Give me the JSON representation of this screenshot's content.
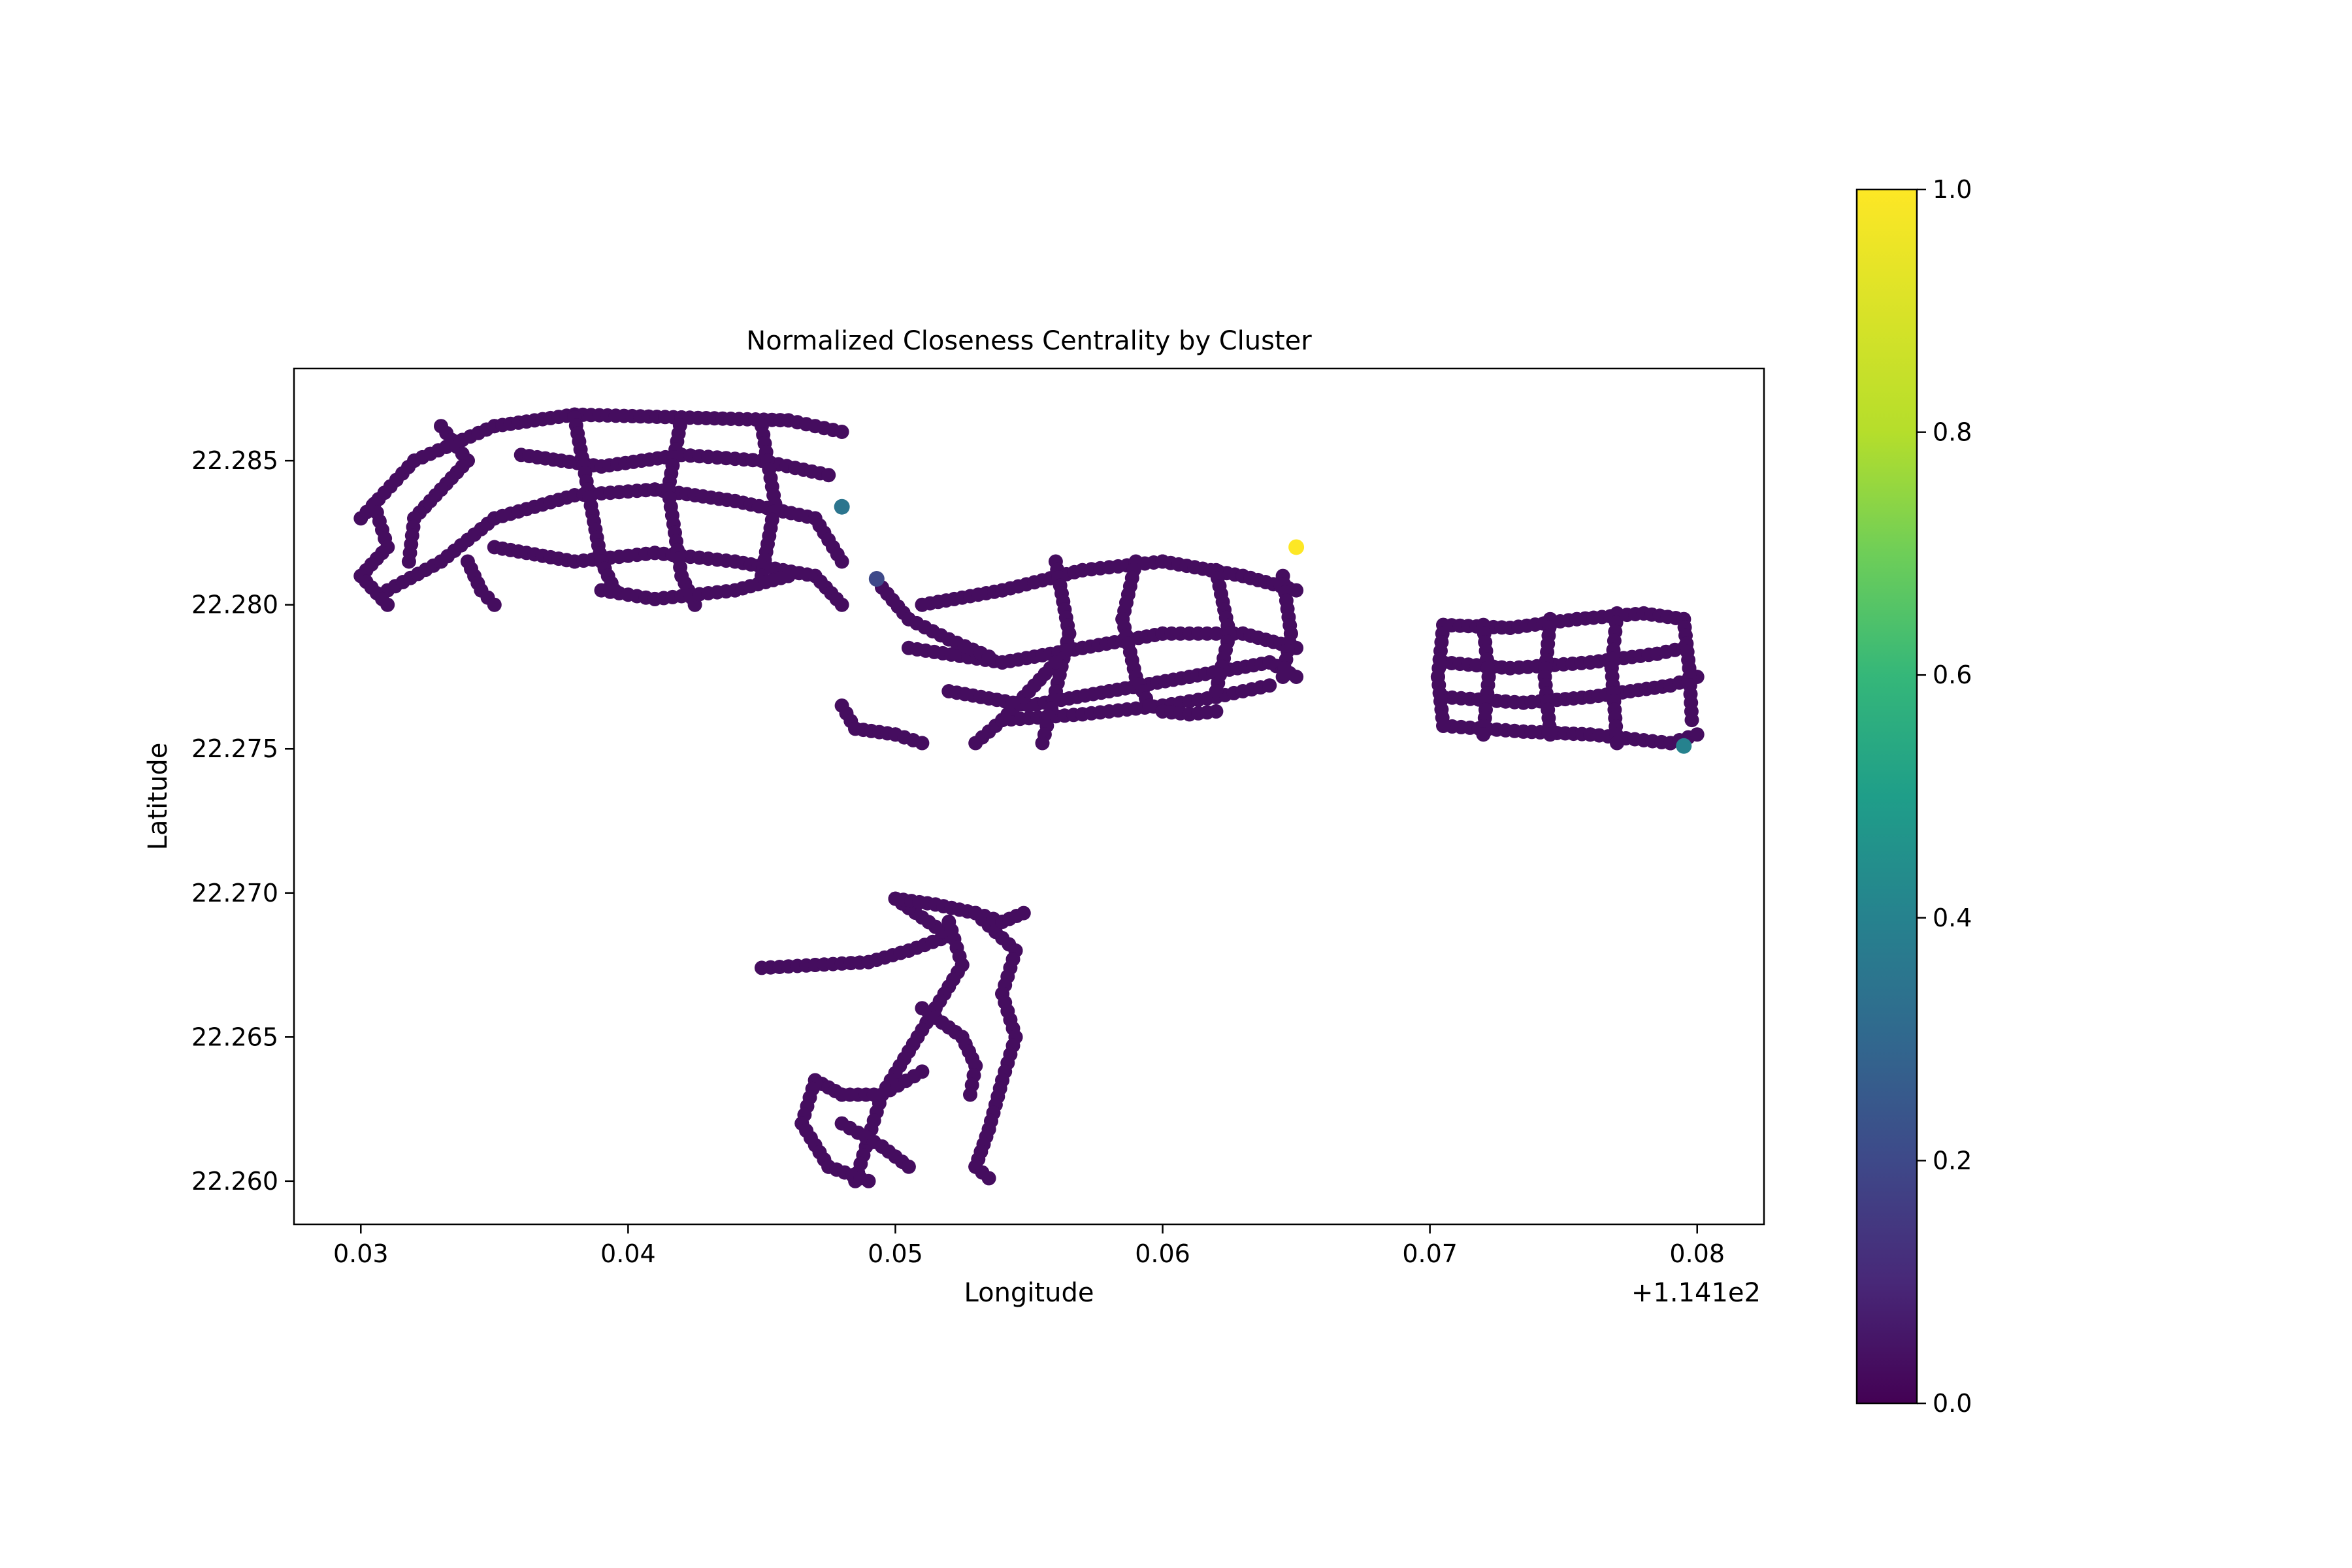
{
  "chart_data": {
    "type": "scatter",
    "title": "Normalized Closeness Centrality by Cluster",
    "xlabel": "Longitude",
    "ylabel": "Latitude",
    "x_offset_label": "+1.141e2",
    "xlim": [
      114.1275,
      114.1825
    ],
    "ylim": [
      22.2585,
      22.2882
    ],
    "x_ticks": [
      {
        "value": 114.13,
        "label": "0.03"
      },
      {
        "value": 114.14,
        "label": "0.04"
      },
      {
        "value": 114.15,
        "label": "0.05"
      },
      {
        "value": 114.16,
        "label": "0.06"
      },
      {
        "value": 114.17,
        "label": "0.07"
      },
      {
        "value": 114.18,
        "label": "0.08"
      }
    ],
    "y_ticks": [
      {
        "value": 22.26,
        "label": "22.260"
      },
      {
        "value": 22.265,
        "label": "22.265"
      },
      {
        "value": 22.27,
        "label": "22.270"
      },
      {
        "value": 22.275,
        "label": "22.275"
      },
      {
        "value": 22.28,
        "label": "22.280"
      },
      {
        "value": 22.285,
        "label": "22.285"
      }
    ],
    "grid": false,
    "colorbar": {
      "colormap": "viridis",
      "range": [
        0.0,
        1.0
      ],
      "ticks": [
        {
          "value": 0.0,
          "label": "0.0"
        },
        {
          "value": 0.2,
          "label": "0.2"
        },
        {
          "value": 0.4,
          "label": "0.4"
        },
        {
          "value": 0.6,
          "label": "0.6"
        },
        {
          "value": 0.8,
          "label": "0.8"
        },
        {
          "value": 1.0,
          "label": "1.0"
        }
      ]
    },
    "clusters": [
      {
        "region": "north-west",
        "value": 0.03,
        "paths": [
          [
            [
              114.13,
              22.283
            ],
            [
              114.132,
              22.285
            ],
            [
              114.135,
              22.2862
            ],
            [
              114.138,
              22.2866
            ],
            [
              114.142,
              22.2865
            ],
            [
              114.146,
              22.2864
            ],
            [
              114.148,
              22.286
            ]
          ],
          [
            [
              114.131,
              22.2805
            ],
            [
              114.133,
              22.2815
            ],
            [
              114.135,
              22.283
            ],
            [
              114.138,
              22.2838
            ],
            [
              114.141,
              22.284
            ],
            [
              114.144,
              22.2836
            ],
            [
              114.147,
              22.283
            ],
            [
              114.148,
              22.2815
            ]
          ],
          [
            [
              114.136,
              22.2852
            ],
            [
              114.139,
              22.2848
            ],
            [
              114.142,
              22.2852
            ],
            [
              114.145,
              22.285
            ],
            [
              114.1475,
              22.2845
            ]
          ],
          [
            [
              114.135,
              22.282
            ],
            [
              114.138,
              22.2815
            ],
            [
              114.141,
              22.2818
            ],
            [
              114.144,
              22.2815
            ],
            [
              114.147,
              22.281
            ],
            [
              114.148,
              22.28
            ]
          ],
          [
            [
              114.138,
              22.2865
            ],
            [
              114.1385,
              22.284
            ],
            [
              114.139,
              22.2815
            ],
            [
              114.1395,
              22.2805
            ]
          ],
          [
            [
              114.142,
              22.2865
            ],
            [
              114.1415,
              22.284
            ],
            [
              114.142,
              22.281
            ],
            [
              114.1425,
              22.28
            ]
          ],
          [
            [
              114.145,
              22.2862
            ],
            [
              114.1455,
              22.2835
            ],
            [
              114.145,
              22.281
            ]
          ],
          [
            [
              114.134,
              22.2815
            ],
            [
              114.1345,
              22.2805
            ],
            [
              114.135,
              22.28
            ]
          ],
          [
            [
              114.1305,
              22.2835
            ],
            [
              114.131,
              22.282
            ],
            [
              114.13,
              22.281
            ],
            [
              114.131,
              22.28
            ]
          ],
          [
            [
              114.139,
              22.2805
            ],
            [
              114.141,
              22.2802
            ],
            [
              114.144,
              22.2805
            ],
            [
              114.146,
              22.281
            ]
          ],
          [
            [
              114.133,
              22.2862
            ],
            [
              114.134,
              22.285
            ],
            [
              114.133,
              22.284
            ],
            [
              114.132,
              22.283
            ],
            [
              114.1318,
              22.2815
            ]
          ]
        ]
      },
      {
        "region": "central",
        "value": 0.03,
        "paths": [
          [
            [
              114.151,
              22.28
            ],
            [
              114.154,
              22.2805
            ],
            [
              114.157,
              22.2812
            ],
            [
              114.16,
              22.2815
            ],
            [
              114.163,
              22.281
            ],
            [
              114.165,
              22.2805
            ]
          ],
          [
            [
              114.1505,
              22.2785
            ],
            [
              114.154,
              22.278
            ],
            [
              114.157,
              22.2785
            ],
            [
              114.16,
              22.279
            ],
            [
              114.163,
              22.279
            ],
            [
              114.165,
              22.2785
            ]
          ],
          [
            [
              114.152,
              22.277
            ],
            [
              114.155,
              22.2765
            ],
            [
              114.158,
              22.277
            ],
            [
              114.161,
              22.2775
            ],
            [
              114.164,
              22.278
            ],
            [
              114.165,
              22.2775
            ]
          ],
          [
            [
              114.154,
              22.276
            ],
            [
              114.157,
              22.2762
            ],
            [
              114.16,
              22.2765
            ],
            [
              114.162,
              22.2768
            ],
            [
              114.164,
              22.2772
            ]
          ],
          [
            [
              114.156,
              22.2815
            ],
            [
              114.1565,
              22.279
            ],
            [
              114.156,
              22.277
            ],
            [
              114.1555,
              22.2752
            ]
          ],
          [
            [
              114.159,
              22.2815
            ],
            [
              114.1585,
              22.2795
            ],
            [
              114.159,
              22.2775
            ],
            [
              114.1595,
              22.2765
            ]
          ],
          [
            [
              114.162,
              22.2812
            ],
            [
              114.1625,
              22.279
            ],
            [
              114.162,
              22.277
            ]
          ],
          [
            [
              114.1645,
              22.281
            ],
            [
              114.1648,
              22.279
            ],
            [
              114.1645,
              22.2775
            ]
          ],
          [
            [
              114.148,
              22.2765
            ],
            [
              114.1485,
              22.2757
            ],
            [
              114.15,
              22.2755
            ],
            [
              114.151,
              22.2752
            ]
          ],
          [
            [
              114.1495,
              22.2806
            ],
            [
              114.1505,
              22.2795
            ],
            [
              114.152,
              22.2788
            ],
            [
              114.1535,
              22.2782
            ]
          ],
          [
            [
              114.153,
              22.2752
            ],
            [
              114.154,
              22.276
            ],
            [
              114.155,
              22.277
            ],
            [
              114.156,
              22.278
            ]
          ],
          [
            [
              114.16,
              22.2763
            ],
            [
              114.161,
              22.2762
            ],
            [
              114.162,
              22.2763
            ]
          ]
        ]
      },
      {
        "region": "east",
        "value": 0.03,
        "paths": [
          [
            [
              114.1705,
              22.2793
            ],
            [
              114.173,
              22.2792
            ],
            [
              114.1755,
              22.2795
            ],
            [
              114.178,
              22.2797
            ],
            [
              114.1795,
              22.2795
            ]
          ],
          [
            [
              114.1705,
              22.278
            ],
            [
              114.173,
              22.2778
            ],
            [
              114.176,
              22.278
            ],
            [
              114.1785,
              22.2783
            ],
            [
              114.1795,
              22.2785
            ]
          ],
          [
            [
              114.1705,
              22.2768
            ],
            [
              114.1735,
              22.2766
            ],
            [
              114.176,
              22.2768
            ],
            [
              114.179,
              22.2772
            ],
            [
              114.18,
              22.2775
            ]
          ],
          [
            [
              114.1705,
              22.2758
            ],
            [
              114.1735,
              22.2756
            ],
            [
              114.176,
              22.2755
            ],
            [
              114.179,
              22.2752
            ],
            [
              114.18,
              22.2755
            ]
          ],
          [
            [
              114.172,
              22.2793
            ],
            [
              114.1722,
              22.2775
            ],
            [
              114.172,
              22.2755
            ]
          ],
          [
            [
              114.1745,
              22.2795
            ],
            [
              114.1743,
              22.2775
            ],
            [
              114.1745,
              22.2755
            ]
          ],
          [
            [
              114.177,
              22.2797
            ],
            [
              114.1768,
              22.2778
            ],
            [
              114.177,
              22.2752
            ]
          ],
          [
            [
              114.1795,
              22.2795
            ],
            [
              114.1797,
              22.2778
            ],
            [
              114.1798,
              22.276
            ]
          ],
          [
            [
              114.1705,
              22.2793
            ],
            [
              114.1703,
              22.2775
            ],
            [
              114.1705,
              22.2758
            ]
          ]
        ]
      },
      {
        "region": "south",
        "value": 0.03,
        "paths": [
          [
            [
              114.145,
              22.2674
            ],
            [
              114.147,
              22.2675
            ],
            [
              114.149,
              22.2676
            ],
            [
              114.1505,
              22.268
            ],
            [
              114.152,
              22.2685
            ],
            [
              114.15,
              22.2698
            ]
          ],
          [
            [
              114.15,
              22.2698
            ],
            [
              114.1515,
              22.2696
            ],
            [
              114.153,
              22.2693
            ],
            [
              114.1545,
              22.268
            ],
            [
              114.154,
              22.2665
            ],
            [
              114.1545,
              22.265
            ],
            [
              114.154,
              22.2635
            ],
            [
              114.1535,
              22.2618
            ],
            [
              114.153,
              22.2605
            ],
            [
              114.1535,
              22.2601
            ]
          ],
          [
            [
              114.152,
              22.269
            ],
            [
              114.1525,
              22.2675
            ],
            [
              114.1515,
              22.266
            ],
            [
              114.1505,
              22.2645
            ],
            [
              114.1495,
              22.263
            ],
            [
              114.149,
              22.2615
            ],
            [
              114.1485,
              22.26
            ]
          ],
          [
            [
              114.147,
              22.2635
            ],
            [
              114.148,
              22.263
            ],
            [
              114.1495,
              22.263
            ],
            [
              114.151,
              22.2638
            ]
          ],
          [
            [
              114.147,
              22.2635
            ],
            [
              114.1465,
              22.262
            ],
            [
              114.1475,
              22.2605
            ],
            [
              114.149,
              22.26
            ]
          ],
          [
            [
              114.151,
              22.266
            ],
            [
              114.1525,
              22.265
            ],
            [
              114.153,
              22.264
            ],
            [
              114.1528,
              22.263
            ]
          ],
          [
            [
              114.153,
              22.2693
            ],
            [
              114.154,
              22.269
            ],
            [
              114.1548,
              22.2693
            ]
          ],
          [
            [
              114.148,
              22.262
            ],
            [
              114.1495,
              22.2612
            ],
            [
              114.1505,
              22.2605
            ]
          ]
        ]
      }
    ],
    "highlighted_points": [
      {
        "x": 114.165,
        "y": 22.282,
        "value": 1.0
      },
      {
        "x": 114.1493,
        "y": 22.2809,
        "value": 0.2
      },
      {
        "x": 114.148,
        "y": 22.2834,
        "value": 0.35
      },
      {
        "x": 114.1795,
        "y": 22.2751,
        "value": 0.4
      }
    ]
  }
}
